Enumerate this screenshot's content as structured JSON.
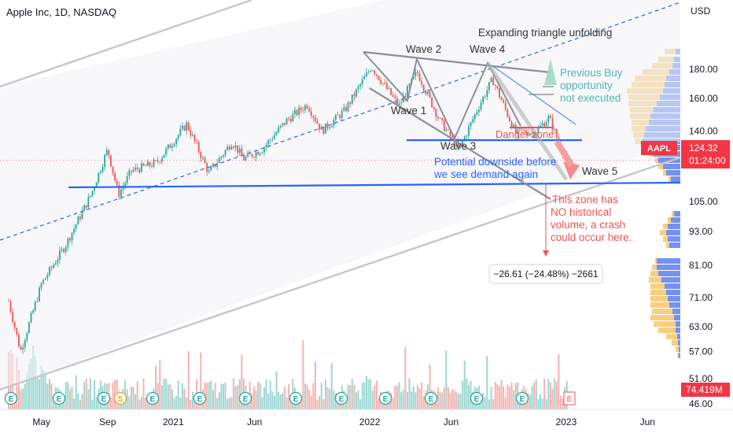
{
  "header": {
    "title": "Apple Inc, 1D, NASDAQ"
  },
  "price_axis": {
    "currency": "USD",
    "ticks": [
      "180.00",
      "160.00",
      "140.00",
      "124.32",
      "105.00",
      "93.00",
      "81.00",
      "71.00",
      "63.00",
      "57.00",
      "51.00",
      "46.00"
    ],
    "last_price_label": "AAPL",
    "last_price": "124.32",
    "countdown": "01:24:00",
    "volume_label": "74.419M"
  },
  "time_axis": {
    "ticks": [
      "May",
      "Sep",
      "2021",
      "Jun",
      "2022",
      "Jun",
      "2023",
      "Jun"
    ]
  },
  "annotations": {
    "heading": "Expanding triangle unfolding",
    "wave1": "Wave 1",
    "wave2": "Wave 2",
    "wave3": "Wave 3",
    "wave4": "Wave 4",
    "wave5": "Wave 5",
    "danger": "Danger zone",
    "prev_buy": [
      "Previous Buy",
      "opportunity",
      "not executed"
    ],
    "downside": [
      "Potential downside before",
      "we see demand again"
    ],
    "no_volume": [
      "This zone has",
      "NO historical",
      "volume, a crash",
      "could occur here."
    ],
    "measure": "−26.61 (−24.48%) −2661"
  },
  "markers": {
    "earnings_letter": "E",
    "split_letter": "S"
  },
  "colors": {
    "up": "#26a69a",
    "down": "#ef5350",
    "blue_line": "#2962ff",
    "grey_line": "#9e9e9e",
    "last_price_bg": "#f23645",
    "profile_blue": "#5b7ff0",
    "profile_yellow": "#f7c76a"
  },
  "chart_data": {
    "type": "candlestick",
    "title": "Apple Inc, 1D, NASDAQ",
    "ylabel": "USD",
    "yscale": "log",
    "ylim": [
      45,
      235
    ],
    "x": [
      "2020-03-01",
      "2020-03-23",
      "2020-05-01",
      "2020-06-15",
      "2020-08-01",
      "2020-09-01",
      "2020-09-21",
      "2020-10-15",
      "2020-12-01",
      "2021-01-26",
      "2021-03-08",
      "2021-04-20",
      "2021-05-12",
      "2021-06-15",
      "2021-07-30",
      "2021-09-07",
      "2021-10-04",
      "2021-11-15",
      "2022-01-04",
      "2022-02-24",
      "2022-03-30",
      "2022-05-11",
      "2022-06-16",
      "2022-07-20",
      "2022-08-17",
      "2022-09-30",
      "2022-10-10",
      "2022-11-03",
      "2022-11-30",
      "2022-12-20",
      "2023-01-04"
    ],
    "close": [
      70,
      57,
      75,
      88,
      108,
      130,
      108,
      119,
      123,
      144,
      118,
      134,
      125,
      130,
      146,
      156,
      140,
      152,
      182,
      155,
      178,
      146,
      130,
      153,
      173,
      138,
      140,
      139,
      148,
      132,
      124.32
    ],
    "annotated_levels": [
      {
        "label": "Wave 1",
        "value": 155
      },
      {
        "label": "Wave 2",
        "value": 178
      },
      {
        "label": "Wave 3",
        "value": 130
      },
      {
        "label": "Wave 4",
        "value": 176
      },
      {
        "label": "support_line",
        "value": 108
      },
      {
        "label": "wave3_line",
        "value": 129
      }
    ],
    "last_price": 124.32,
    "measure": {
      "change": -26.61,
      "percent": -24.48,
      "bars": -2661
    }
  }
}
